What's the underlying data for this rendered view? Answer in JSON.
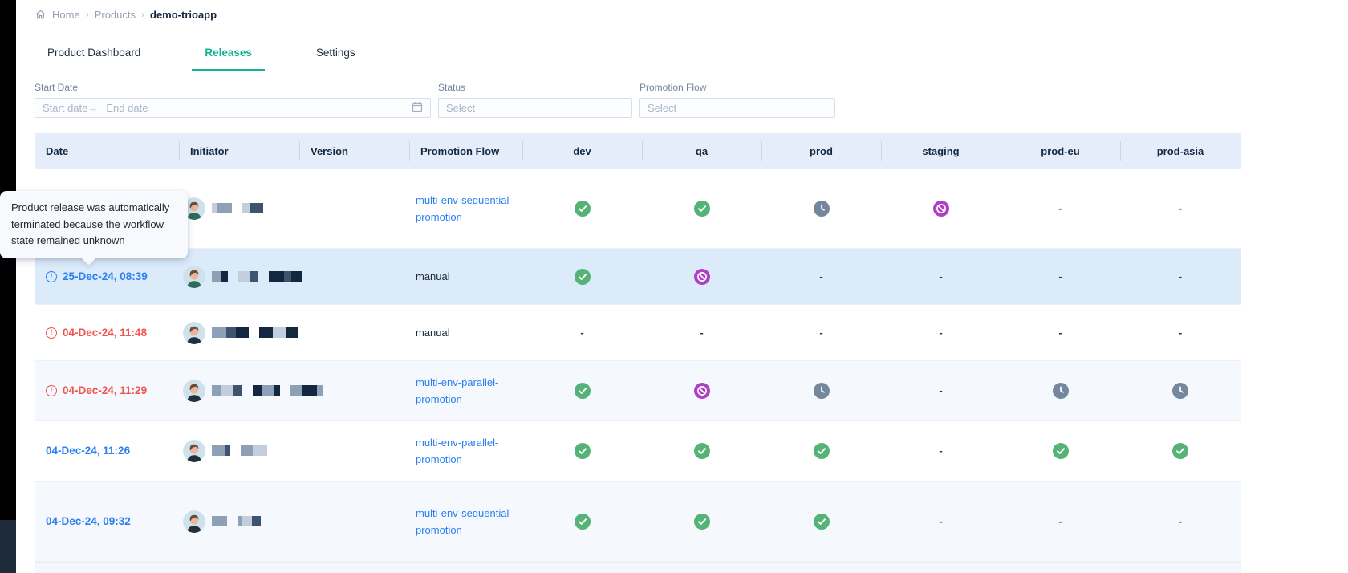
{
  "breadcrumb": {
    "separator": "›",
    "items": [
      {
        "label": "Home"
      },
      {
        "label": "Products"
      },
      {
        "label": "demo-trioapp"
      }
    ]
  },
  "tabs": [
    {
      "label": "Product Dashboard",
      "active": false
    },
    {
      "label": "Releases",
      "active": true
    },
    {
      "label": "Settings",
      "active": false
    }
  ],
  "filters": {
    "start_date": {
      "label": "Start Date",
      "start_placeholder": "Start date",
      "end_placeholder": "End date",
      "arrow": "→"
    },
    "status": {
      "label": "Status",
      "placeholder": "Select"
    },
    "promotion_flow": {
      "label": "Promotion Flow",
      "placeholder": "Select"
    }
  },
  "tooltip": {
    "text": "Product release was automatically terminated because the workflow state remained unknown"
  },
  "table": {
    "columns": [
      "Date",
      "Initiator",
      "Version",
      "Promotion Flow",
      "dev",
      "qa",
      "prod",
      "staging",
      "prod-eu",
      "prod-asia"
    ],
    "rows": [
      {
        "date": "",
        "date_hidden_by_tooltip": true,
        "date_color": "",
        "date_icon": "",
        "initiator_redacted": true,
        "version": "",
        "promotion_flow": "multi-env-sequential-promotion",
        "flow_is_link": true,
        "highlighted": false,
        "statuses": [
          "success",
          "success",
          "pending",
          "terminated",
          "none",
          "none"
        ]
      },
      {
        "date": "25-Dec-24, 08:39",
        "date_color": "blue",
        "date_icon": "alert",
        "initiator_redacted": true,
        "version": "",
        "promotion_flow": "manual",
        "flow_is_link": false,
        "highlighted": true,
        "statuses": [
          "success",
          "terminated",
          "none",
          "none",
          "none",
          "none"
        ]
      },
      {
        "date": "04-Dec-24, 11:48",
        "date_color": "red",
        "date_icon": "alert",
        "initiator_redacted": true,
        "version": "",
        "promotion_flow": "manual",
        "flow_is_link": false,
        "highlighted": false,
        "statuses": [
          "none",
          "none",
          "none",
          "none",
          "none",
          "none"
        ]
      },
      {
        "date": "04-Dec-24, 11:29",
        "date_color": "red",
        "date_icon": "alert",
        "initiator_redacted": true,
        "version": "",
        "promotion_flow": "multi-env-parallel-promotion",
        "flow_is_link": true,
        "highlighted": false,
        "statuses": [
          "success",
          "terminated",
          "pending",
          "none",
          "pending",
          "pending"
        ]
      },
      {
        "date": "04-Dec-24, 11:26",
        "date_color": "blue",
        "date_icon": "",
        "initiator_redacted": true,
        "version": "",
        "promotion_flow": "multi-env-parallel-promotion",
        "flow_is_link": true,
        "highlighted": false,
        "statuses": [
          "success",
          "success",
          "success",
          "none",
          "success",
          "success"
        ]
      },
      {
        "date": "04-Dec-24, 09:32",
        "date_color": "blue",
        "date_icon": "",
        "initiator_redacted": true,
        "version": "",
        "promotion_flow": "multi-env-sequential-promotion",
        "flow_is_link": true,
        "highlighted": false,
        "statuses": [
          "success",
          "success",
          "success",
          "none",
          "none",
          "none"
        ]
      }
    ]
  },
  "icons": {
    "success": "check-circle-icon",
    "pending": "clock-circle-icon",
    "terminated": "no-entry-circle-icon",
    "alert": "exclamation-circle-icon",
    "none": "dash",
    "breadcrumb_home": "home-icon",
    "date_filter": "calendar-icon"
  },
  "colors": {
    "active_tab_teal": "#14b094",
    "link_blue": "#2a80f0",
    "date_red": "#f2544d",
    "status_green": "#56b377",
    "status_purple": "#b13ec6",
    "status_slate": "#75879d",
    "header_bg": "#e4edf9",
    "row_highlight": "#dcebfa",
    "row_alt": "#f5f8fc",
    "left_rail": "#000000"
  }
}
